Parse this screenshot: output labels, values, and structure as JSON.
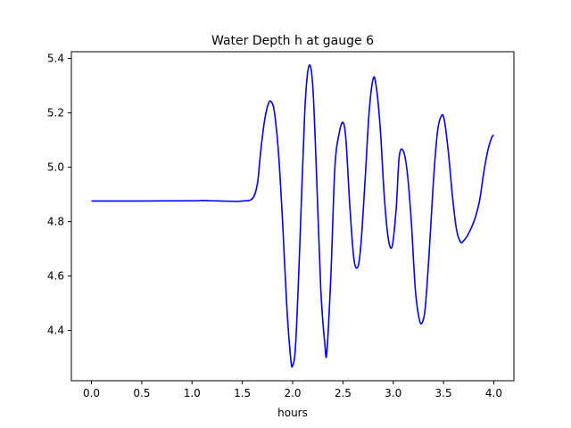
{
  "chart_data": {
    "type": "line",
    "title": "Water Depth h at gauge 6",
    "xlabel": "hours",
    "ylabel": "",
    "xlim": [
      -0.2,
      4.2
    ],
    "ylim": [
      4.215,
      5.425
    ],
    "xticks": [
      0.0,
      0.5,
      1.0,
      1.5,
      2.0,
      2.5,
      3.0,
      3.5,
      4.0
    ],
    "xtick_labels": [
      "0.0",
      "0.5",
      "1.0",
      "1.5",
      "2.0",
      "2.5",
      "3.0",
      "3.5",
      "4.0"
    ],
    "yticks": [
      4.4,
      4.6,
      4.8,
      5.0,
      5.2,
      5.4
    ],
    "ytick_labels": [
      "4.4",
      "4.6",
      "4.8",
      "5.0",
      "5.2",
      "5.4"
    ],
    "grid": false,
    "legend": "none",
    "series": [
      {
        "color": "#0000ff",
        "x": [
          0.0,
          0.5,
          1.0,
          1.1,
          1.2,
          1.4,
          1.5,
          1.6,
          1.65,
          1.68,
          1.72,
          1.76,
          1.79,
          1.82,
          1.86,
          1.9,
          1.94,
          1.98,
          2.0,
          2.03,
          2.07,
          2.12,
          2.16,
          2.2,
          2.24,
          2.28,
          2.32,
          2.34,
          2.38,
          2.42,
          2.46,
          2.5,
          2.53,
          2.57,
          2.61,
          2.65,
          2.68,
          2.72,
          2.76,
          2.8,
          2.83,
          2.87,
          2.91,
          2.95,
          2.99,
          3.03,
          3.06,
          3.1,
          3.14,
          3.18,
          3.22,
          3.26,
          3.29,
          3.32,
          3.36,
          3.4,
          3.44,
          3.48,
          3.51,
          3.55,
          3.59,
          3.63,
          3.67,
          3.7,
          3.74,
          3.78,
          3.82,
          3.86,
          3.9,
          3.94,
          3.98,
          4.0
        ],
        "y": [
          4.876,
          4.876,
          4.877,
          4.878,
          4.877,
          4.875,
          4.876,
          4.885,
          4.94,
          5.05,
          5.17,
          5.235,
          5.24,
          5.2,
          5.05,
          4.8,
          4.5,
          4.3,
          4.27,
          4.35,
          4.7,
          5.2,
          5.37,
          5.3,
          4.95,
          4.55,
          4.35,
          4.32,
          4.6,
          5.0,
          5.12,
          5.165,
          5.1,
          4.85,
          4.66,
          4.635,
          4.72,
          4.95,
          5.2,
          5.325,
          5.3,
          5.15,
          4.9,
          4.74,
          4.71,
          4.85,
          5.04,
          5.06,
          4.98,
          4.8,
          4.55,
          4.44,
          4.43,
          4.49,
          4.7,
          4.95,
          5.13,
          5.19,
          5.17,
          5.05,
          4.89,
          4.77,
          4.725,
          4.73,
          4.75,
          4.78,
          4.82,
          4.88,
          4.98,
          5.06,
          5.11,
          5.118
        ]
      }
    ]
  }
}
